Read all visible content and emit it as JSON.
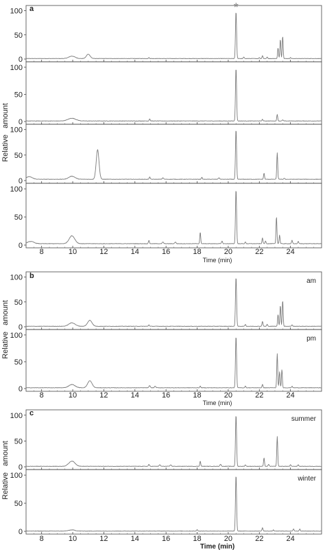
{
  "chart_data": [
    {
      "id": "a",
      "panel_letter": "a",
      "type": "line",
      "ylabel": "Relative   amount",
      "xlabel": "Time (min)",
      "xlim": [
        7.0,
        26.0
      ],
      "x_ticks": [
        8,
        10,
        12,
        14,
        16,
        18,
        20,
        22,
        24
      ],
      "y_ticks": [
        0,
        50,
        100
      ],
      "ylim": [
        0,
        105
      ],
      "annotation": {
        "text": "*",
        "x": 20.5
      },
      "series": [
        {
          "label": "",
          "baseline": 1.0,
          "peaks": [
            [
              9.95,
              5,
              0.2
            ],
            [
              11.0,
              9,
              0.12
            ],
            [
              14.9,
              2,
              0.03
            ],
            [
              20.5,
              98,
              0.035
            ],
            [
              21.0,
              3,
              0.03
            ],
            [
              22.0,
              2,
              0.03
            ],
            [
              22.2,
              6,
              0.03
            ],
            [
              22.5,
              3,
              0.03
            ],
            [
              23.2,
              22,
              0.03
            ],
            [
              23.35,
              40,
              0.03
            ],
            [
              23.5,
              46,
              0.03
            ],
            [
              24.0,
              2,
              0.03
            ]
          ]
        },
        {
          "label": "",
          "baseline": 1.0,
          "peaks": [
            [
              9.95,
              5,
              0.25
            ],
            [
              14.95,
              4,
              0.03
            ],
            [
              20.5,
              98,
              0.035
            ],
            [
              22.2,
              3,
              0.03
            ],
            [
              23.15,
              12,
              0.03
            ],
            [
              23.5,
              2,
              0.03
            ]
          ]
        },
        {
          "label": "",
          "baseline": 2.5,
          "peaks": [
            [
              7.2,
              5,
              0.2
            ],
            [
              9.95,
              6,
              0.2
            ],
            [
              11.6,
              58,
              0.09
            ],
            [
              14.95,
              5,
              0.03
            ],
            [
              15.8,
              3,
              0.04
            ],
            [
              18.3,
              4,
              0.03
            ],
            [
              19.4,
              3,
              0.04
            ],
            [
              20.5,
              98,
              0.035
            ],
            [
              22.3,
              12,
              0.03
            ],
            [
              23.15,
              52,
              0.03
            ],
            [
              23.6,
              2,
              0.03
            ]
          ]
        },
        {
          "label": "",
          "baseline": 2.5,
          "peaks": [
            [
              7.3,
              4,
              0.2
            ],
            [
              9.95,
              14,
              0.18
            ],
            [
              14.9,
              6,
              0.03
            ],
            [
              15.8,
              3,
              0.04
            ],
            [
              16.6,
              3,
              0.04
            ],
            [
              18.2,
              20,
              0.03
            ],
            [
              19.6,
              5,
              0.03
            ],
            [
              20.5,
              97,
              0.035
            ],
            [
              21.1,
              3,
              0.03
            ],
            [
              22.2,
              10,
              0.03
            ],
            [
              22.4,
              5,
              0.03
            ],
            [
              23.1,
              48,
              0.03
            ],
            [
              23.3,
              15,
              0.03
            ],
            [
              24.1,
              6,
              0.03
            ],
            [
              24.5,
              4,
              0.03
            ]
          ]
        }
      ]
    },
    {
      "id": "b",
      "panel_letter": "b",
      "type": "line",
      "ylabel": "Relative   amount",
      "xlabel": "Time (min)",
      "xlim": [
        7.0,
        26.0
      ],
      "x_ticks": [
        8,
        10,
        12,
        14,
        16,
        18,
        20,
        22,
        24
      ],
      "y_ticks": [
        0,
        50,
        100
      ],
      "ylim": [
        0,
        105
      ],
      "series": [
        {
          "label": "am",
          "baseline": 1.0,
          "peaks": [
            [
              9.95,
              7,
              0.2
            ],
            [
              11.1,
              12,
              0.14
            ],
            [
              14.9,
              3,
              0.03
            ],
            [
              20.5,
              100,
              0.035
            ],
            [
              21.1,
              4,
              0.03
            ],
            [
              22.2,
              10,
              0.03
            ],
            [
              22.5,
              4,
              0.03
            ],
            [
              23.2,
              24,
              0.03
            ],
            [
              23.35,
              42,
              0.03
            ],
            [
              23.5,
              52,
              0.03
            ],
            [
              24.1,
              3,
              0.03
            ]
          ]
        },
        {
          "label": "pm",
          "baseline": 1.5,
          "peaks": [
            [
              9.95,
              6,
              0.2
            ],
            [
              11.1,
              13,
              0.14
            ],
            [
              14.95,
              4,
              0.04
            ],
            [
              15.3,
              3,
              0.04
            ],
            [
              18.2,
              3,
              0.03
            ],
            [
              20.5,
              97,
              0.035
            ],
            [
              21.1,
              3,
              0.03
            ],
            [
              22.2,
              6,
              0.03
            ],
            [
              23.15,
              64,
              0.03
            ],
            [
              23.3,
              30,
              0.03
            ],
            [
              23.45,
              34,
              0.03
            ],
            [
              24.1,
              3,
              0.03
            ]
          ]
        }
      ]
    },
    {
      "id": "c",
      "panel_letter": "c",
      "type": "line",
      "ylabel": "Relative   amount",
      "xlabel": "Time (min)",
      "xlim": [
        7.0,
        26.0
      ],
      "x_ticks": [
        8,
        10,
        12,
        14,
        16,
        18,
        20,
        22,
        24
      ],
      "y_ticks": [
        0,
        50,
        100
      ],
      "ylim": [
        0,
        105
      ],
      "series": [
        {
          "label": "summer",
          "baseline": 1.0,
          "peaks": [
            [
              9.95,
              10,
              0.2
            ],
            [
              14.9,
              4,
              0.03
            ],
            [
              15.6,
              3,
              0.04
            ],
            [
              16.3,
              3,
              0.04
            ],
            [
              18.2,
              10,
              0.03
            ],
            [
              19.5,
              4,
              0.04
            ],
            [
              20.5,
              100,
              0.035
            ],
            [
              21.1,
              3,
              0.03
            ],
            [
              22.3,
              16,
              0.03
            ],
            [
              22.6,
              4,
              0.03
            ],
            [
              23.15,
              58,
              0.03
            ],
            [
              24.0,
              3,
              0.03
            ],
            [
              24.5,
              3,
              0.03
            ]
          ]
        },
        {
          "label": "winter",
          "baseline": 0.5,
          "peaks": [
            [
              9.95,
              2,
              0.2
            ],
            [
              18.0,
              3,
              0.03
            ],
            [
              20.5,
              100,
              0.035
            ],
            [
              22.2,
              6,
              0.03
            ],
            [
              22.9,
              2,
              0.03
            ],
            [
              24.2,
              4,
              0.03
            ],
            [
              24.6,
              4,
              0.03
            ]
          ]
        }
      ]
    }
  ]
}
